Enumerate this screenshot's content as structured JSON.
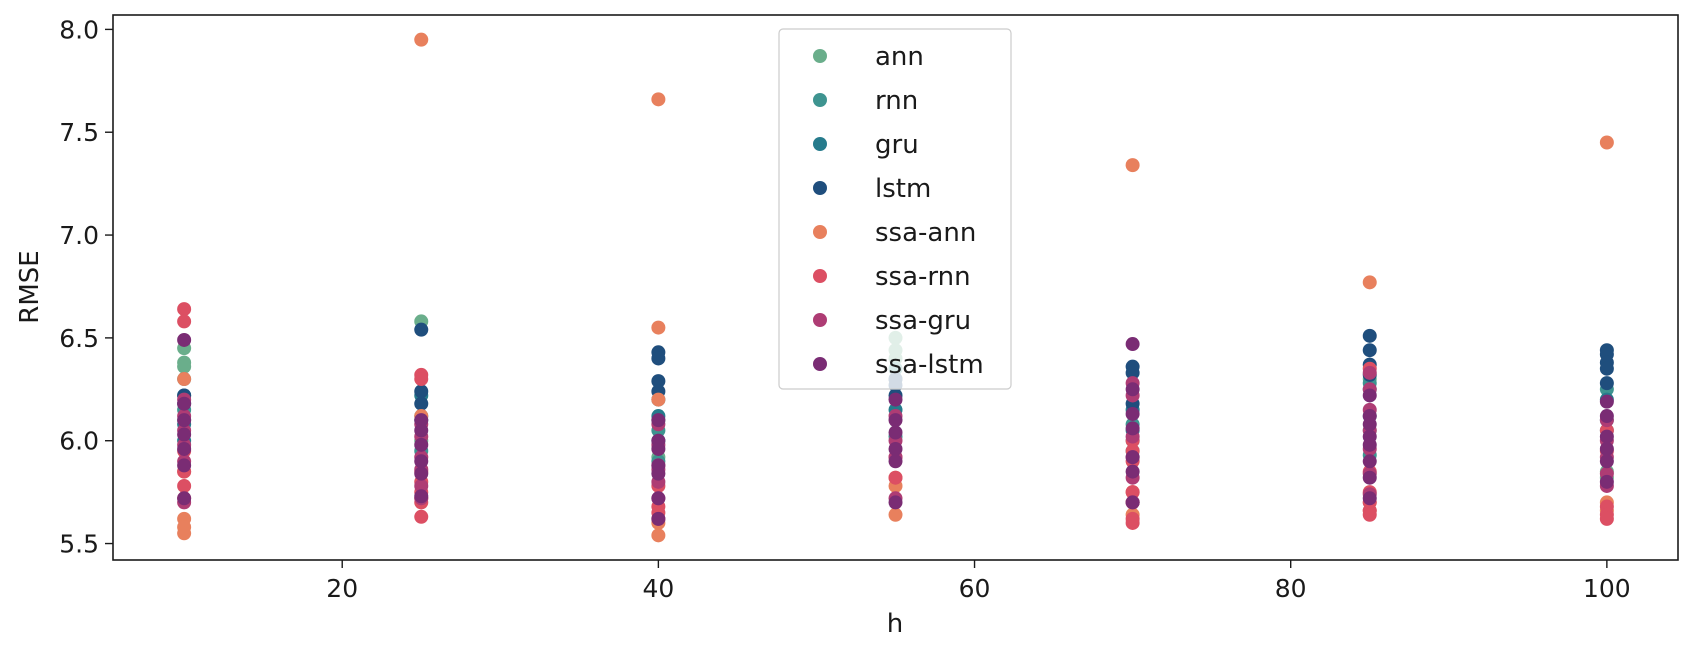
{
  "chart_data": {
    "type": "scatter",
    "title": "",
    "xlabel": "h",
    "ylabel": "RMSE",
    "xlim": [
      5.5,
      104.5
    ],
    "ylim": [
      5.42,
      8.07
    ],
    "xticks": [
      20,
      40,
      60,
      80,
      100
    ],
    "yticks": [
      5.5,
      6.0,
      6.5,
      7.0,
      7.5,
      8.0
    ],
    "xtick_labels": [
      "20",
      "40",
      "60",
      "80",
      "100"
    ],
    "ytick_labels": [
      "5.5",
      "6.0",
      "6.5",
      "7.0",
      "7.5",
      "8.0"
    ],
    "grid": false,
    "legend_position": "upper-center",
    "series": [
      {
        "name": "ann",
        "color": "#6aae8b",
        "points": [
          [
            10,
            6.45
          ],
          [
            10,
            6.38
          ],
          [
            10,
            6.36
          ],
          [
            10,
            6.1
          ],
          [
            25,
            6.58
          ],
          [
            25,
            6.0
          ],
          [
            40,
            6.1
          ],
          [
            40,
            5.92
          ],
          [
            55,
            6.5
          ],
          [
            55,
            6.44
          ],
          [
            55,
            6.4
          ],
          [
            70,
            6.0
          ],
          [
            85,
            6.3
          ],
          [
            85,
            6.05
          ],
          [
            100,
            5.85
          ],
          [
            100,
            5.82
          ]
        ]
      },
      {
        "name": "rnn",
        "color": "#3e9490",
        "points": [
          [
            10,
            6.3
          ],
          [
            10,
            6.15
          ],
          [
            25,
            6.12
          ],
          [
            25,
            5.95
          ],
          [
            40,
            6.05
          ],
          [
            40,
            5.9
          ],
          [
            55,
            6.35
          ],
          [
            55,
            6.02
          ],
          [
            70,
            6.08
          ],
          [
            70,
            5.95
          ],
          [
            85,
            6.28
          ],
          [
            85,
            5.93
          ],
          [
            100,
            6.25
          ],
          [
            100,
            6.05
          ]
        ]
      },
      {
        "name": "gru",
        "color": "#267b8c",
        "points": [
          [
            10,
            6.22
          ],
          [
            10,
            6.08
          ],
          [
            10,
            6.0
          ],
          [
            25,
            6.22
          ],
          [
            25,
            6.1
          ],
          [
            40,
            6.2
          ],
          [
            40,
            6.12
          ],
          [
            40,
            6.0
          ],
          [
            55,
            6.3
          ],
          [
            55,
            6.15
          ],
          [
            70,
            6.15
          ],
          [
            70,
            6.05
          ],
          [
            85,
            6.25
          ],
          [
            85,
            6.12
          ],
          [
            100,
            6.2
          ],
          [
            100,
            6.1
          ]
        ]
      },
      {
        "name": "lstm",
        "color": "#1f4e7d",
        "points": [
          [
            10,
            6.22
          ],
          [
            10,
            6.18
          ],
          [
            25,
            6.54
          ],
          [
            25,
            6.24
          ],
          [
            25,
            6.18
          ],
          [
            40,
            6.43
          ],
          [
            40,
            6.4
          ],
          [
            40,
            6.29
          ],
          [
            40,
            6.24
          ],
          [
            55,
            6.3
          ],
          [
            55,
            6.27
          ],
          [
            55,
            6.22
          ],
          [
            70,
            6.36
          ],
          [
            70,
            6.33
          ],
          [
            70,
            6.18
          ],
          [
            85,
            6.51
          ],
          [
            85,
            6.44
          ],
          [
            85,
            6.37
          ],
          [
            85,
            6.32
          ],
          [
            100,
            6.44
          ],
          [
            100,
            6.42
          ],
          [
            100,
            6.38
          ],
          [
            100,
            6.35
          ],
          [
            100,
            6.28
          ]
        ]
      },
      {
        "name": "ssa-ann",
        "color": "#e8805d",
        "points": [
          [
            10,
            6.3
          ],
          [
            10,
            5.85
          ],
          [
            10,
            5.62
          ],
          [
            10,
            5.58
          ],
          [
            10,
            5.55
          ],
          [
            25,
            7.95
          ],
          [
            25,
            6.12
          ],
          [
            25,
            5.72
          ],
          [
            40,
            7.66
          ],
          [
            40,
            6.55
          ],
          [
            40,
            6.2
          ],
          [
            40,
            5.6
          ],
          [
            40,
            5.54
          ],
          [
            55,
            5.82
          ],
          [
            55,
            5.78
          ],
          [
            55,
            5.64
          ],
          [
            70,
            7.34
          ],
          [
            70,
            5.75
          ],
          [
            70,
            5.7
          ],
          [
            70,
            5.64
          ],
          [
            85,
            6.77
          ],
          [
            85,
            5.7
          ],
          [
            85,
            5.66
          ],
          [
            100,
            7.45
          ],
          [
            100,
            5.7
          ],
          [
            100,
            5.66
          ]
        ]
      },
      {
        "name": "ssa-rnn",
        "color": "#dc4f63",
        "points": [
          [
            10,
            6.64
          ],
          [
            10,
            6.58
          ],
          [
            10,
            5.95
          ],
          [
            10,
            5.85
          ],
          [
            10,
            5.78
          ],
          [
            10,
            5.72
          ],
          [
            25,
            6.32
          ],
          [
            25,
            6.3
          ],
          [
            25,
            5.85
          ],
          [
            25,
            5.8
          ],
          [
            25,
            5.75
          ],
          [
            25,
            5.7
          ],
          [
            25,
            5.63
          ],
          [
            40,
            5.88
          ],
          [
            40,
            5.78
          ],
          [
            40,
            5.68
          ],
          [
            40,
            5.65
          ],
          [
            40,
            5.62
          ],
          [
            55,
            5.92
          ],
          [
            55,
            5.82
          ],
          [
            70,
            6.0
          ],
          [
            70,
            5.95
          ],
          [
            70,
            5.9
          ],
          [
            70,
            5.75
          ],
          [
            70,
            5.7
          ],
          [
            70,
            5.62
          ],
          [
            70,
            5.6
          ],
          [
            85,
            6.35
          ],
          [
            85,
            5.85
          ],
          [
            85,
            5.75
          ],
          [
            85,
            5.7
          ],
          [
            85,
            5.66
          ],
          [
            85,
            5.64
          ],
          [
            100,
            6.05
          ],
          [
            100,
            5.95
          ],
          [
            100,
            5.68
          ],
          [
            100,
            5.64
          ],
          [
            100,
            5.62
          ]
        ]
      },
      {
        "name": "ssa-gru",
        "color": "#ae3c74",
        "points": [
          [
            10,
            6.2
          ],
          [
            10,
            6.12
          ],
          [
            10,
            6.05
          ],
          [
            10,
            5.98
          ],
          [
            10,
            5.9
          ],
          [
            10,
            5.7
          ],
          [
            25,
            6.08
          ],
          [
            25,
            6.02
          ],
          [
            25,
            5.92
          ],
          [
            25,
            5.86
          ],
          [
            25,
            5.78
          ],
          [
            25,
            5.72
          ],
          [
            40,
            6.08
          ],
          [
            40,
            5.98
          ],
          [
            40,
            5.86
          ],
          [
            40,
            5.8
          ],
          [
            40,
            5.72
          ],
          [
            55,
            6.12
          ],
          [
            55,
            6.0
          ],
          [
            55,
            5.92
          ],
          [
            55,
            5.72
          ],
          [
            70,
            6.28
          ],
          [
            70,
            6.22
          ],
          [
            70,
            6.02
          ],
          [
            70,
            5.92
          ],
          [
            70,
            5.82
          ],
          [
            70,
            5.7
          ],
          [
            85,
            6.33
          ],
          [
            85,
            6.25
          ],
          [
            85,
            6.15
          ],
          [
            85,
            6.05
          ],
          [
            85,
            5.96
          ],
          [
            85,
            5.84
          ],
          [
            85,
            5.74
          ],
          [
            100,
            6.1
          ],
          [
            100,
            6.0
          ],
          [
            100,
            5.92
          ],
          [
            100,
            5.84
          ],
          [
            100,
            5.78
          ]
        ]
      },
      {
        "name": "ssa-lstm",
        "color": "#7a2c74",
        "points": [
          [
            10,
            6.49
          ],
          [
            10,
            6.18
          ],
          [
            10,
            6.1
          ],
          [
            10,
            6.03
          ],
          [
            10,
            5.96
          ],
          [
            10,
            5.88
          ],
          [
            10,
            5.72
          ],
          [
            25,
            6.1
          ],
          [
            25,
            6.05
          ],
          [
            25,
            5.98
          ],
          [
            25,
            5.9
          ],
          [
            25,
            5.84
          ],
          [
            25,
            5.73
          ],
          [
            40,
            6.1
          ],
          [
            40,
            6.0
          ],
          [
            40,
            5.96
          ],
          [
            40,
            5.88
          ],
          [
            40,
            5.84
          ],
          [
            40,
            5.72
          ],
          [
            40,
            5.62
          ],
          [
            55,
            6.2
          ],
          [
            55,
            6.1
          ],
          [
            55,
            6.04
          ],
          [
            55,
            5.96
          ],
          [
            55,
            5.9
          ],
          [
            55,
            5.7
          ],
          [
            70,
            6.47
          ],
          [
            70,
            6.25
          ],
          [
            70,
            6.13
          ],
          [
            70,
            6.06
          ],
          [
            70,
            5.92
          ],
          [
            70,
            5.85
          ],
          [
            70,
            5.7
          ],
          [
            85,
            6.22
          ],
          [
            85,
            6.12
          ],
          [
            85,
            6.08
          ],
          [
            85,
            6.02
          ],
          [
            85,
            5.98
          ],
          [
            85,
            5.9
          ],
          [
            85,
            5.82
          ],
          [
            85,
            5.72
          ],
          [
            100,
            6.19
          ],
          [
            100,
            6.12
          ],
          [
            100,
            6.02
          ],
          [
            100,
            5.96
          ],
          [
            100,
            5.9
          ],
          [
            100,
            5.8
          ]
        ]
      }
    ]
  }
}
